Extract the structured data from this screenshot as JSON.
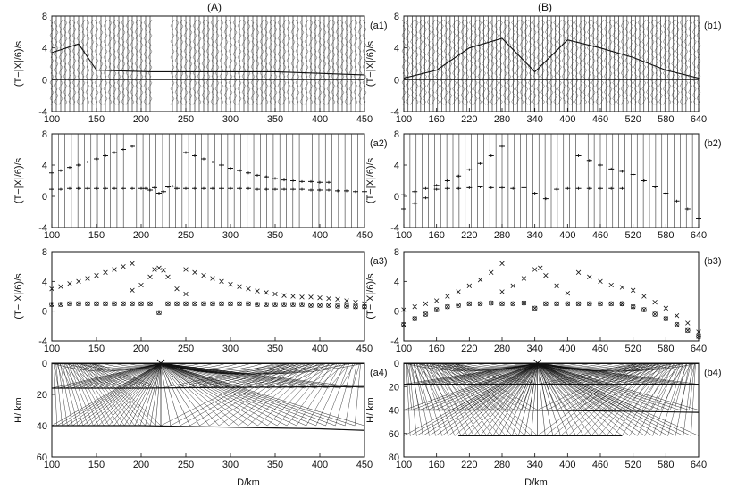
{
  "figure": {
    "column_titles": [
      "(A)",
      "(B)"
    ],
    "xlabel": "D/km",
    "ylabel_time": "(T−|X|/6)/s",
    "ylabel_depth": "H/ km"
  },
  "colors": {
    "ink": "#111111",
    "trace": "#333333",
    "background": "#ffffff"
  },
  "panels": [
    {
      "id": "a1",
      "label": "(a1)",
      "kind": "seismogram",
      "xlim": [
        100,
        450
      ],
      "xticks": [
        100,
        150,
        200,
        250,
        300,
        350,
        400,
        450
      ],
      "ylim": [
        -4,
        8
      ],
      "yticks": [
        -4,
        0,
        4,
        8
      ],
      "gap": [
        212,
        232
      ],
      "zero_line": true,
      "picks": [
        {
          "x": 100,
          "y": 3.4
        },
        {
          "x": 130,
          "y": 4.5
        },
        {
          "x": 150,
          "y": 1.2
        },
        {
          "x": 210,
          "y": 1.0
        },
        {
          "x": 250,
          "y": 1.0
        },
        {
          "x": 300,
          "y": 1.0
        },
        {
          "x": 350,
          "y": 1.0
        },
        {
          "x": 400,
          "y": 0.8
        },
        {
          "x": 450,
          "y": 0.6
        }
      ]
    },
    {
      "id": "b1",
      "label": "(b1)",
      "kind": "seismogram",
      "xlim": [
        100,
        640
      ],
      "xticks": [
        100,
        160,
        220,
        280,
        340,
        400,
        460,
        520,
        580,
        640
      ],
      "ylim": [
        -4,
        8
      ],
      "yticks": [
        -4,
        0,
        4,
        8
      ],
      "gap": null,
      "zero_line": true,
      "picks": [
        {
          "x": 100,
          "y": 0.2
        },
        {
          "x": 160,
          "y": 1.2
        },
        {
          "x": 220,
          "y": 4.0
        },
        {
          "x": 280,
          "y": 5.2
        },
        {
          "x": 340,
          "y": 1.0
        },
        {
          "x": 400,
          "y": 5.0
        },
        {
          "x": 460,
          "y": 4.0
        },
        {
          "x": 520,
          "y": 2.8
        },
        {
          "x": 580,
          "y": 1.2
        },
        {
          "x": 640,
          "y": 0.2
        }
      ]
    },
    {
      "id": "a2",
      "label": "(a2)",
      "kind": "picks",
      "xlim": [
        100,
        450
      ],
      "xticks": [
        100,
        150,
        200,
        250,
        300,
        350,
        400,
        450
      ],
      "ylim": [
        -4,
        8
      ],
      "yticks": [
        -4,
        0,
        4,
        8
      ],
      "series": [
        {
          "x": [
            100,
            110,
            120,
            130,
            140,
            150,
            160,
            170,
            180,
            190
          ],
          "y": [
            3.0,
            3.3,
            3.7,
            4.0,
            4.4,
            4.8,
            5.2,
            5.6,
            6.0,
            6.4
          ]
        },
        {
          "x": [
            100,
            110,
            120,
            130,
            140,
            150,
            160,
            170,
            180,
            190,
            200,
            205,
            210,
            215,
            220,
            225,
            230,
            235,
            240,
            250,
            260,
            270,
            280,
            290,
            300,
            310,
            320,
            330,
            340,
            350,
            360,
            370,
            380,
            390,
            400,
            410,
            420,
            430,
            440,
            450
          ],
          "y": [
            0.9,
            0.9,
            1.0,
            1.0,
            1.0,
            1.0,
            1.0,
            1.0,
            1.0,
            1.0,
            1.0,
            1.0,
            0.8,
            1.1,
            0.4,
            0.6,
            1.2,
            1.3,
            1.0,
            1.0,
            1.0,
            1.0,
            1.0,
            1.0,
            1.0,
            1.0,
            1.0,
            0.9,
            0.9,
            0.9,
            0.9,
            0.9,
            0.9,
            0.8,
            0.8,
            0.8,
            0.7,
            0.7,
            0.6,
            0.6
          ]
        },
        {
          "x": [
            250,
            260,
            270,
            280,
            290,
            300,
            310,
            320,
            330,
            340,
            350,
            360,
            370,
            380,
            390,
            400,
            410
          ],
          "y": [
            5.6,
            5.2,
            4.8,
            4.4,
            4.0,
            3.6,
            3.3,
            3.0,
            2.7,
            2.5,
            2.3,
            2.1,
            2.0,
            1.9,
            1.9,
            1.8,
            1.8
          ]
        }
      ]
    },
    {
      "id": "b2",
      "label": "(b2)",
      "kind": "picks",
      "xlim": [
        100,
        640
      ],
      "xticks": [
        100,
        160,
        220,
        280,
        340,
        400,
        460,
        520,
        580,
        640
      ],
      "ylim": [
        -4,
        8
      ],
      "yticks": [
        -4,
        0,
        4,
        8
      ],
      "series": [
        {
          "x": [
            100,
            120,
            140,
            160,
            180,
            200,
            220,
            240,
            260,
            280
          ],
          "y": [
            0.2,
            0.6,
            1.0,
            1.4,
            2.0,
            2.6,
            3.4,
            4.2,
            5.2,
            6.4
          ]
        },
        {
          "x": [
            160,
            180,
            200,
            220,
            240,
            260,
            280,
            300,
            320,
            340,
            360,
            380,
            400,
            420,
            440,
            460,
            480,
            500
          ],
          "y": [
            0.9,
            1.0,
            1.0,
            1.1,
            1.2,
            1.1,
            1.1,
            1.0,
            1.1,
            0.4,
            -0.3,
            0.9,
            1.0,
            1.0,
            1.0,
            1.0,
            1.0,
            1.0
          ]
        },
        {
          "x": [
            420,
            440,
            460,
            480,
            500,
            520,
            540,
            560,
            580,
            600,
            620,
            640
          ],
          "y": [
            5.2,
            4.6,
            4.0,
            3.5,
            3.2,
            2.8,
            2.0,
            1.2,
            0.4,
            -0.6,
            -1.6,
            -2.8
          ]
        },
        {
          "x": [
            100,
            120,
            140
          ],
          "y": [
            -1.6,
            -0.9,
            -0.2
          ]
        }
      ]
    },
    {
      "id": "a3",
      "label": "(a3)",
      "kind": "fit",
      "xlim": [
        100,
        450
      ],
      "xticks": [
        100,
        150,
        200,
        250,
        300,
        350,
        400,
        450
      ],
      "ylim": [
        -4,
        8
      ],
      "yticks": [
        -4,
        0,
        4,
        8
      ],
      "series": [
        {
          "x": [
            100,
            110,
            120,
            130,
            140,
            150,
            160,
            170,
            180,
            190
          ],
          "y": [
            3.0,
            3.3,
            3.7,
            4.0,
            4.4,
            4.8,
            5.2,
            5.6,
            6.0,
            6.4
          ]
        },
        {
          "x": [
            100,
            110,
            120,
            130,
            140,
            150,
            160,
            170,
            180,
            190,
            200,
            210,
            220,
            230,
            240,
            250,
            260,
            270,
            280,
            290,
            300,
            310,
            320,
            330,
            340,
            350,
            360,
            370,
            380,
            390,
            400,
            410,
            420,
            430,
            440,
            450
          ],
          "y": [
            0.9,
            0.9,
            1.0,
            1.0,
            1.0,
            1.0,
            1.0,
            1.0,
            1.0,
            1.0,
            1.0,
            1.0,
            -0.2,
            1.0,
            1.0,
            1.0,
            1.0,
            1.0,
            1.0,
            1.0,
            1.0,
            1.0,
            1.0,
            0.9,
            0.9,
            0.9,
            0.9,
            0.9,
            0.9,
            0.8,
            0.8,
            0.8,
            0.7,
            0.7,
            0.6,
            0.6
          ]
        },
        {
          "x": [
            190,
            200,
            210,
            215,
            220,
            225,
            230,
            240,
            250
          ],
          "y": [
            2.8,
            3.5,
            4.6,
            5.6,
            5.8,
            5.5,
            4.6,
            3.0,
            2.3
          ]
        },
        {
          "x": [
            250,
            260,
            270,
            280,
            290,
            300,
            310,
            320,
            330,
            340,
            350,
            360,
            370,
            380,
            390,
            400,
            410,
            420,
            430,
            440,
            450
          ],
          "y": [
            5.6,
            5.2,
            4.8,
            4.4,
            4.0,
            3.6,
            3.3,
            3.0,
            2.7,
            2.5,
            2.3,
            2.1,
            2.0,
            1.9,
            1.9,
            1.8,
            1.7,
            1.6,
            1.4,
            1.2,
            1.0
          ]
        }
      ]
    },
    {
      "id": "b3",
      "label": "(b3)",
      "kind": "fit",
      "xlim": [
        100,
        640
      ],
      "xticks": [
        100,
        160,
        220,
        280,
        340,
        400,
        460,
        520,
        580,
        640
      ],
      "ylim": [
        -4,
        8
      ],
      "yticks": [
        -4,
        0,
        4,
        8
      ],
      "series": [
        {
          "x": [
            100,
            120,
            140,
            160,
            180,
            200,
            220,
            240,
            260,
            280
          ],
          "y": [
            0.2,
            0.6,
            1.0,
            1.4,
            2.0,
            2.6,
            3.4,
            4.2,
            5.2,
            6.4
          ]
        },
        {
          "x": [
            100,
            120,
            140,
            160,
            180,
            200,
            220,
            240,
            260,
            280,
            300,
            320,
            340,
            360,
            380,
            400,
            420,
            440,
            460,
            480,
            500
          ],
          "y": [
            -1.8,
            -1.0,
            -0.4,
            0.2,
            0.6,
            0.8,
            1.0,
            1.0,
            1.1,
            1.0,
            1.0,
            1.1,
            0.4,
            1.0,
            1.0,
            1.0,
            1.0,
            1.0,
            1.0,
            1.0,
            1.0
          ]
        },
        {
          "x": [
            280,
            300,
            320,
            340,
            350,
            360,
            380,
            400
          ],
          "y": [
            2.6,
            3.4,
            4.4,
            5.6,
            5.8,
            4.8,
            3.4,
            2.4
          ]
        },
        {
          "x": [
            420,
            440,
            460,
            480,
            500,
            520,
            540,
            560,
            580,
            600,
            620,
            640
          ],
          "y": [
            5.2,
            4.6,
            4.0,
            3.5,
            3.2,
            2.8,
            2.0,
            1.2,
            0.4,
            -0.6,
            -1.6,
            -2.8
          ]
        },
        {
          "x": [
            500,
            520,
            540,
            560,
            580,
            600,
            620,
            640
          ],
          "y": [
            1.0,
            0.6,
            0.2,
            -0.4,
            -1.0,
            -1.8,
            -2.6,
            -3.4
          ]
        }
      ]
    },
    {
      "id": "a4",
      "label": "(a4)",
      "kind": "ray",
      "xlim": [
        100,
        450
      ],
      "xticks": [
        100,
        150,
        200,
        250,
        300,
        350,
        400,
        450
      ],
      "ylim": [
        0,
        60
      ],
      "yticks": [
        0,
        20,
        40,
        60
      ],
      "source_x": 222,
      "interfaces": [
        {
          "x": [
            100,
            200,
            300,
            450
          ],
          "y": [
            0.3,
            0.3,
            0.2,
            0.2
          ]
        },
        {
          "x": [
            100,
            200,
            300,
            450
          ],
          "y": [
            16,
            16,
            15.5,
            15
          ]
        },
        {
          "x": [
            100,
            200,
            300,
            400,
            450
          ],
          "y": [
            40,
            40,
            41,
            42,
            43
          ]
        }
      ]
    },
    {
      "id": "b4",
      "label": "(b4)",
      "kind": "ray",
      "xlim": [
        100,
        640
      ],
      "xticks": [
        100,
        160,
        220,
        280,
        340,
        400,
        460,
        520,
        580,
        640
      ],
      "ylim": [
        0,
        80
      ],
      "yticks": [
        0,
        20,
        40,
        60,
        80
      ],
      "source_x": 345,
      "interfaces": [
        {
          "x": [
            100,
            300,
            500,
            640
          ],
          "y": [
            0.3,
            0.3,
            0.3,
            0.3
          ]
        },
        {
          "x": [
            100,
            300,
            500,
            640
          ],
          "y": [
            18,
            18,
            18,
            18
          ]
        },
        {
          "x": [
            100,
            300,
            500,
            640
          ],
          "y": [
            40,
            40,
            41,
            42
          ]
        },
        {
          "x": [
            200,
            350,
            500
          ],
          "y": [
            62,
            62,
            62
          ]
        }
      ]
    }
  ]
}
